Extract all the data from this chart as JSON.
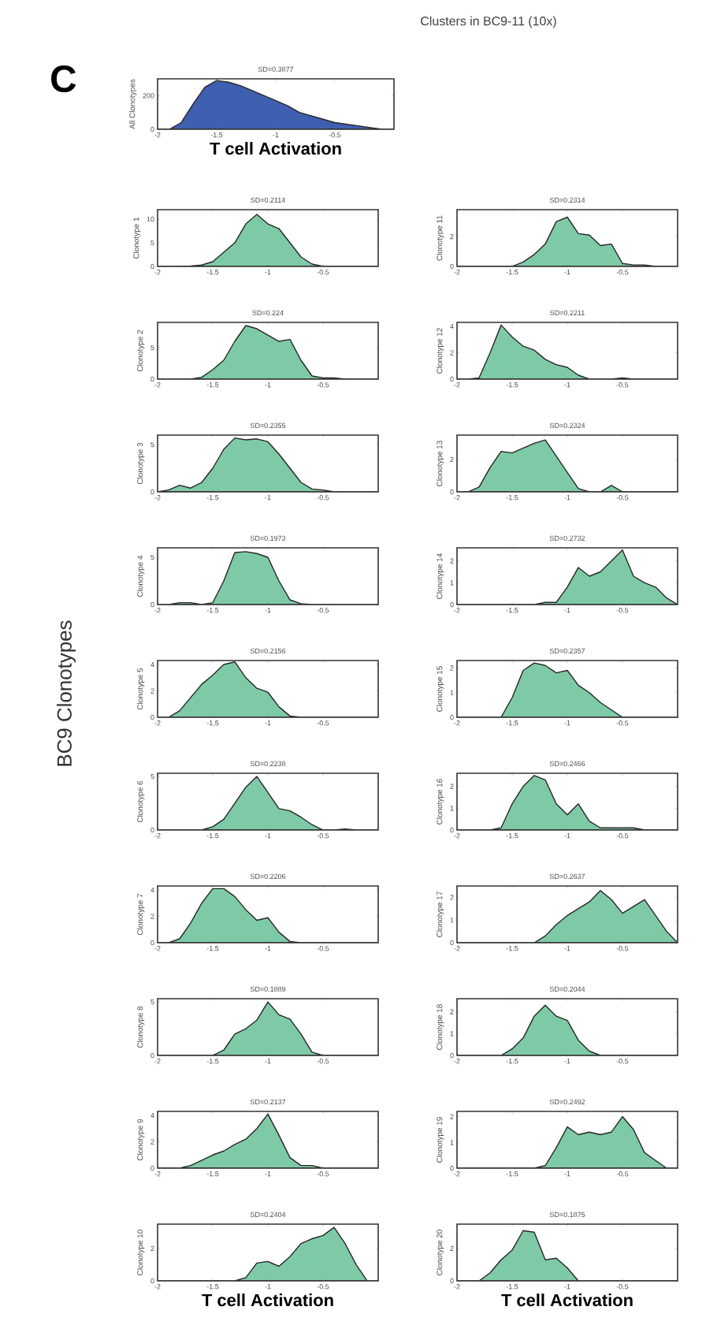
{
  "chart_data": [
    {
      "type": "area",
      "title": "SD=0.3877",
      "ylabel": "All Clonotypes",
      "xlabel": "T cell Activation",
      "color": "#3f5fb0",
      "xlim": [
        -2,
        0
      ],
      "ylim": [
        0,
        300
      ],
      "xticks": [
        -2,
        -1.5,
        -1,
        -0.5
      ],
      "yticks": [
        0,
        200
      ],
      "annotations": [
        "C",
        "Clusters in BC9-11 (10x)",
        "BC9 Clonotypes"
      ],
      "x": [
        -2,
        -1.9,
        -1.8,
        -1.7,
        -1.6,
        -1.5,
        -1.4,
        -1.3,
        -1.2,
        -1.1,
        -1,
        -0.9,
        -0.8,
        -0.7,
        -0.6,
        -0.5,
        -0.4,
        -0.3,
        -0.2,
        -0.1,
        0
      ],
      "values": [
        0,
        0,
        40,
        150,
        250,
        290,
        280,
        260,
        230,
        200,
        170,
        140,
        100,
        80,
        60,
        40,
        30,
        20,
        10,
        0,
        0
      ]
    },
    {
      "type": "area",
      "title": "SD=0.2114",
      "ylabel": "Clonotype 1",
      "color": "#7fcaa6",
      "xlim": [
        -2,
        0
      ],
      "ylim": [
        0,
        12
      ],
      "xticks": [
        -2,
        -1.5,
        -1,
        -0.5
      ],
      "yticks": [
        0,
        5,
        10
      ],
      "x": [
        -2,
        -1.9,
        -1.8,
        -1.7,
        -1.6,
        -1.5,
        -1.4,
        -1.3,
        -1.2,
        -1.1,
        -1,
        -0.9,
        -0.8,
        -0.7,
        -0.6,
        -0.5,
        -0.4,
        -0.3,
        -0.2,
        -0.1,
        0
      ],
      "values": [
        0,
        0,
        0,
        0.1,
        0.3,
        1,
        3,
        5,
        9,
        11,
        9,
        8,
        5,
        2,
        0.5,
        0,
        0,
        0,
        0,
        0,
        0
      ]
    },
    {
      "type": "area",
      "title": "SD=0.224",
      "ylabel": "Clonotype 2",
      "color": "#7fcaa6",
      "xlim": [
        -2,
        0
      ],
      "ylim": [
        0,
        9
      ],
      "xticks": [
        -2,
        -1.5,
        -1,
        -0.5
      ],
      "yticks": [
        0,
        5
      ],
      "x": [
        -2,
        -1.9,
        -1.8,
        -1.7,
        -1.6,
        -1.5,
        -1.4,
        -1.3,
        -1.2,
        -1.1,
        -1,
        -0.9,
        -0.8,
        -0.7,
        -0.6,
        -0.5,
        -0.4,
        -0.3,
        -0.2,
        -0.1,
        0
      ],
      "values": [
        0,
        0,
        0,
        0,
        0.3,
        1.5,
        3,
        6,
        8.5,
        8,
        7,
        6,
        6.3,
        3,
        0.5,
        0.2,
        0.2,
        0,
        0,
        0,
        0
      ]
    },
    {
      "type": "area",
      "title": "SD=0.2355",
      "ylabel": "Clonotype 3",
      "color": "#7fcaa6",
      "xlim": [
        -2,
        0
      ],
      "ylim": [
        0,
        6
      ],
      "xticks": [
        -2,
        -1.5,
        -1,
        -0.5
      ],
      "yticks": [
        0,
        5
      ],
      "x": [
        -2,
        -1.9,
        -1.8,
        -1.7,
        -1.6,
        -1.5,
        -1.4,
        -1.3,
        -1.2,
        -1.1,
        -1,
        -0.9,
        -0.8,
        -0.7,
        -0.6,
        -0.5,
        -0.4,
        -0.3,
        -0.2,
        -0.1,
        0
      ],
      "values": [
        0,
        0.2,
        0.7,
        0.4,
        1,
        2.5,
        4.5,
        5.7,
        5.5,
        5.6,
        5.3,
        4,
        2.5,
        1,
        0.3,
        0.2,
        0,
        0,
        0,
        0,
        0
      ]
    },
    {
      "type": "area",
      "title": "SD=0.1973",
      "ylabel": "Clonotype 4",
      "color": "#7fcaa6",
      "xlim": [
        -2,
        0
      ],
      "ylim": [
        0,
        6
      ],
      "xticks": [
        -2,
        -1.5,
        -1,
        -0.5
      ],
      "yticks": [
        0,
        5
      ],
      "x": [
        -2,
        -1.9,
        -1.8,
        -1.7,
        -1.6,
        -1.5,
        -1.4,
        -1.3,
        -1.2,
        -1.1,
        -1,
        -0.9,
        -0.8,
        -0.7,
        -0.6,
        -0.5,
        -0.4,
        -0.3,
        -0.2,
        -0.1,
        0
      ],
      "values": [
        0,
        0,
        0.2,
        0.2,
        0,
        0.2,
        2.5,
        5.5,
        5.6,
        5.4,
        5,
        2.5,
        0.5,
        0.1,
        0,
        0,
        0,
        0,
        0,
        0,
        0
      ]
    },
    {
      "type": "area",
      "title": "SD=0.2156",
      "ylabel": "Clonotype 5",
      "color": "#7fcaa6",
      "xlim": [
        -2,
        0
      ],
      "ylim": [
        0,
        4.3
      ],
      "xticks": [
        -2,
        -1.5,
        -1,
        -0.5
      ],
      "yticks": [
        0,
        2,
        4
      ],
      "x": [
        -2,
        -1.9,
        -1.8,
        -1.7,
        -1.6,
        -1.5,
        -1.4,
        -1.3,
        -1.2,
        -1.1,
        -1,
        -0.9,
        -0.8,
        -0.7,
        -0.6,
        -0.5,
        -0.4,
        -0.3,
        -0.2,
        -0.1,
        0
      ],
      "values": [
        0,
        0,
        0.5,
        1.5,
        2.5,
        3.2,
        4,
        4.2,
        3,
        2.2,
        1.9,
        0.8,
        0.1,
        0,
        0,
        0,
        0,
        0,
        0,
        0,
        0
      ]
    },
    {
      "type": "area",
      "title": "SD=0.2238",
      "ylabel": "Clonotype 6",
      "color": "#7fcaa6",
      "xlim": [
        -2,
        0
      ],
      "ylim": [
        0,
        5.3
      ],
      "xticks": [
        -2,
        -1.5,
        -1,
        -0.5
      ],
      "yticks": [
        0,
        5
      ],
      "x": [
        -2,
        -1.9,
        -1.8,
        -1.7,
        -1.6,
        -1.5,
        -1.4,
        -1.3,
        -1.2,
        -1.1,
        -1,
        -0.9,
        -0.8,
        -0.7,
        -0.6,
        -0.5,
        -0.4,
        -0.3,
        -0.2,
        -0.1,
        0
      ],
      "values": [
        0,
        0,
        0,
        0,
        0,
        0.3,
        1,
        2.5,
        4,
        5,
        3.5,
        2,
        1.8,
        1.2,
        0.5,
        0,
        0,
        0.1,
        0,
        0,
        0
      ]
    },
    {
      "type": "area",
      "title": "SD=0.2206",
      "ylabel": "Clonotype 7",
      "color": "#7fcaa6",
      "xlim": [
        -2,
        0
      ],
      "ylim": [
        0,
        4.3
      ],
      "xticks": [
        -2,
        -1.5,
        -1,
        -0.5
      ],
      "yticks": [
        0,
        2,
        4
      ],
      "x": [
        -2,
        -1.9,
        -1.8,
        -1.7,
        -1.6,
        -1.5,
        -1.4,
        -1.3,
        -1.2,
        -1.1,
        -1,
        -0.9,
        -0.8,
        -0.7,
        -0.6,
        -0.5,
        -0.4,
        -0.3,
        -0.2,
        -0.1,
        0
      ],
      "values": [
        0,
        0,
        0.3,
        1.5,
        3,
        4.1,
        4.1,
        3.5,
        2.5,
        1.7,
        1.9,
        0.8,
        0.1,
        0,
        0,
        0,
        0,
        0,
        0,
        0,
        0
      ]
    },
    {
      "type": "area",
      "title": "SD=0.1889",
      "ylabel": "Clonotype 8",
      "color": "#7fcaa6",
      "xlim": [
        -2,
        0
      ],
      "ylim": [
        0,
        5.3
      ],
      "xticks": [
        -2,
        -1.5,
        -1,
        -0.5
      ],
      "yticks": [
        0,
        5
      ],
      "x": [
        -2,
        -1.9,
        -1.8,
        -1.7,
        -1.6,
        -1.5,
        -1.4,
        -1.3,
        -1.2,
        -1.1,
        -1,
        -0.9,
        -0.8,
        -0.7,
        -0.6,
        -0.5,
        -0.4,
        -0.3,
        -0.2,
        -0.1,
        0
      ],
      "values": [
        0,
        0,
        0,
        0,
        0,
        0,
        0.5,
        2,
        2.5,
        3.3,
        5,
        3.8,
        3.4,
        2,
        0.3,
        0,
        0,
        0,
        0,
        0,
        0
      ]
    },
    {
      "type": "area",
      "title": "SD=0.2137",
      "ylabel": "Clonotype 9",
      "color": "#7fcaa6",
      "xlim": [
        -2,
        0
      ],
      "ylim": [
        0,
        4.3
      ],
      "xticks": [
        -2,
        -1.5,
        -1,
        -0.5
      ],
      "yticks": [
        0,
        2,
        4
      ],
      "x": [
        -2,
        -1.9,
        -1.8,
        -1.7,
        -1.6,
        -1.5,
        -1.4,
        -1.3,
        -1.2,
        -1.1,
        -1,
        -0.9,
        -0.8,
        -0.7,
        -0.6,
        -0.5,
        -0.4,
        -0.3,
        -0.2,
        -0.1,
        0
      ],
      "values": [
        0,
        0,
        0,
        0.2,
        0.6,
        1,
        1.3,
        1.8,
        2.2,
        3,
        4.1,
        2.5,
        0.8,
        0.2,
        0.2,
        0,
        0,
        0,
        0,
        0,
        0
      ]
    },
    {
      "type": "area",
      "title": "SD=0.2404",
      "ylabel": "Clonotype 10",
      "xlabel": "T cell Activation",
      "color": "#7fcaa6",
      "xlim": [
        -2,
        0
      ],
      "ylim": [
        0,
        3.5
      ],
      "xticks": [
        -2,
        -1.5,
        -1,
        -0.5
      ],
      "yticks": [
        0,
        2
      ],
      "x": [
        -2,
        -1.9,
        -1.8,
        -1.7,
        -1.6,
        -1.5,
        -1.4,
        -1.3,
        -1.2,
        -1.1,
        -1,
        -0.9,
        -0.8,
        -0.7,
        -0.6,
        -0.5,
        -0.4,
        -0.3,
        -0.2,
        -0.1,
        0
      ],
      "values": [
        0,
        0,
        0,
        0,
        0,
        0,
        0,
        0,
        0.2,
        1.1,
        1.2,
        0.9,
        1.5,
        2.3,
        2.6,
        2.8,
        3.3,
        2.3,
        1,
        0,
        0
      ]
    },
    {
      "type": "area",
      "title": "SD=0.2314",
      "ylabel": "Clonotype 11",
      "color": "#7fcaa6",
      "xlim": [
        -2,
        0
      ],
      "ylim": [
        0,
        3.8
      ],
      "xticks": [
        -2,
        -1.5,
        -1,
        -0.5
      ],
      "yticks": [
        0,
        2
      ],
      "x": [
        -2,
        -1.9,
        -1.8,
        -1.7,
        -1.6,
        -1.5,
        -1.4,
        -1.3,
        -1.2,
        -1.1,
        -1,
        -0.9,
        -0.8,
        -0.7,
        -0.6,
        -0.5,
        -0.4,
        -0.3,
        -0.2,
        -0.1,
        0
      ],
      "values": [
        0,
        0,
        0,
        0,
        0,
        0,
        0.3,
        0.8,
        1.5,
        3,
        3.3,
        2.2,
        2.1,
        1.4,
        1.5,
        0.2,
        0.1,
        0.1,
        0,
        0,
        0
      ]
    },
    {
      "type": "area",
      "title": "SD=0.2211",
      "ylabel": "Clonotype 12",
      "color": "#7fcaa6",
      "xlim": [
        -2,
        0
      ],
      "ylim": [
        0,
        4.3
      ],
      "xticks": [
        -2,
        -1.5,
        -1,
        -0.5
      ],
      "yticks": [
        0,
        2,
        4
      ],
      "x": [
        -2,
        -1.9,
        -1.8,
        -1.7,
        -1.6,
        -1.5,
        -1.4,
        -1.3,
        -1.2,
        -1.1,
        -1,
        -0.9,
        -0.8,
        -0.7,
        -0.6,
        -0.5,
        -0.4,
        -0.3,
        -0.2,
        -0.1,
        0
      ],
      "values": [
        0,
        0,
        0.1,
        2,
        4.1,
        3.2,
        2.5,
        2.2,
        1.5,
        1.1,
        0.9,
        0.3,
        0,
        0,
        0,
        0.1,
        0,
        0,
        0,
        0,
        0
      ]
    },
    {
      "type": "area",
      "title": "SD=0.2324",
      "ylabel": "Clonotype 13",
      "color": "#7fcaa6",
      "xlim": [
        -2,
        0
      ],
      "ylim": [
        0,
        3.5
      ],
      "xticks": [
        -2,
        -1.5,
        -1,
        -0.5
      ],
      "yticks": [
        0,
        2
      ],
      "x": [
        -2,
        -1.9,
        -1.8,
        -1.7,
        -1.6,
        -1.5,
        -1.4,
        -1.3,
        -1.2,
        -1.1,
        -1,
        -0.9,
        -0.8,
        -0.7,
        -0.6,
        -0.5,
        -0.4,
        -0.3,
        -0.2,
        -0.1,
        0
      ],
      "values": [
        0,
        0,
        0.3,
        1.5,
        2.5,
        2.4,
        2.7,
        3,
        3.2,
        2.2,
        1.2,
        0.2,
        0,
        0,
        0.4,
        0,
        0,
        0,
        0,
        0,
        0
      ]
    },
    {
      "type": "area",
      "title": "SD=0.2732",
      "ylabel": "Clonotype 14",
      "color": "#7fcaa6",
      "xlim": [
        -2,
        0
      ],
      "ylim": [
        0,
        2.6
      ],
      "xticks": [
        -2,
        -1.5,
        -1,
        -0.5
      ],
      "yticks": [
        0,
        1,
        2
      ],
      "x": [
        -2,
        -1.9,
        -1.8,
        -1.7,
        -1.6,
        -1.5,
        -1.4,
        -1.3,
        -1.2,
        -1.1,
        -1,
        -0.9,
        -0.8,
        -0.7,
        -0.6,
        -0.5,
        -0.4,
        -0.3,
        -0.2,
        -0.1,
        0
      ],
      "values": [
        0,
        0,
        0,
        0,
        0,
        0,
        0,
        0,
        0.1,
        0.1,
        0.8,
        1.7,
        1.3,
        1.5,
        2,
        2.5,
        1.3,
        1,
        0.8,
        0.3,
        0
      ]
    },
    {
      "type": "area",
      "title": "SD=0.2357",
      "ylabel": "Clonotype 15",
      "color": "#7fcaa6",
      "xlim": [
        -2,
        0
      ],
      "ylim": [
        0,
        2.3
      ],
      "xticks": [
        -2,
        -1.5,
        -1,
        -0.5
      ],
      "yticks": [
        0,
        1,
        2
      ],
      "x": [
        -2,
        -1.9,
        -1.8,
        -1.7,
        -1.6,
        -1.5,
        -1.4,
        -1.3,
        -1.2,
        -1.1,
        -1,
        -0.9,
        -0.8,
        -0.7,
        -0.6,
        -0.5,
        -0.4,
        -0.3,
        -0.2,
        -0.1,
        0
      ],
      "values": [
        0,
        0,
        0,
        0,
        0,
        0.8,
        1.9,
        2.2,
        2.1,
        1.8,
        1.9,
        1.3,
        1,
        0.6,
        0.3,
        0,
        0,
        0,
        0,
        0,
        0
      ]
    },
    {
      "type": "area",
      "title": "SD=0.2466",
      "ylabel": "Clonotype 16",
      "color": "#7fcaa6",
      "xlim": [
        -2,
        0
      ],
      "ylim": [
        0,
        2.6
      ],
      "xticks": [
        -2,
        -1.5,
        -1,
        -0.5
      ],
      "yticks": [
        0,
        1,
        2
      ],
      "x": [
        -2,
        -1.9,
        -1.8,
        -1.7,
        -1.6,
        -1.5,
        -1.4,
        -1.3,
        -1.2,
        -1.1,
        -1,
        -0.9,
        -0.8,
        -0.7,
        -0.6,
        -0.5,
        -0.4,
        -0.3,
        -0.2,
        -0.1,
        0
      ],
      "values": [
        0,
        0,
        0,
        0,
        0.1,
        1.2,
        2,
        2.5,
        2.3,
        1.2,
        0.7,
        1.2,
        0.4,
        0.1,
        0.1,
        0.1,
        0.1,
        0,
        0,
        0,
        0
      ]
    },
    {
      "type": "area",
      "title": "SD=0.2637",
      "ylabel": "Clonotype 17",
      "color": "#7fcaa6",
      "xlim": [
        -2,
        0
      ],
      "ylim": [
        0,
        2.5
      ],
      "xticks": [
        -2,
        -1.5,
        -1,
        -0.5
      ],
      "yticks": [
        0,
        1,
        2
      ],
      "x": [
        -2,
        -1.9,
        -1.8,
        -1.7,
        -1.6,
        -1.5,
        -1.4,
        -1.3,
        -1.2,
        -1.1,
        -1,
        -0.9,
        -0.8,
        -0.7,
        -0.6,
        -0.5,
        -0.4,
        -0.3,
        -0.2,
        -0.1,
        0
      ],
      "values": [
        0,
        0,
        0,
        0,
        0,
        0,
        0,
        0,
        0.3,
        0.8,
        1.2,
        1.5,
        1.8,
        2.3,
        1.9,
        1.3,
        1.6,
        1.9,
        1.2,
        0.5,
        0
      ]
    },
    {
      "type": "area",
      "title": "SD=0.2044",
      "ylabel": "Clonotype 18",
      "color": "#7fcaa6",
      "xlim": [
        -2,
        0
      ],
      "ylim": [
        0,
        2.6
      ],
      "xticks": [
        -2,
        -1.5,
        -1,
        -0.5
      ],
      "yticks": [
        0,
        1,
        2
      ],
      "x": [
        -2,
        -1.9,
        -1.8,
        -1.7,
        -1.6,
        -1.5,
        -1.4,
        -1.3,
        -1.2,
        -1.1,
        -1,
        -0.9,
        -0.8,
        -0.7,
        -0.6,
        -0.5,
        -0.4,
        -0.3,
        -0.2,
        -0.1,
        0
      ],
      "values": [
        0,
        0,
        0,
        0,
        0,
        0.3,
        0.8,
        1.8,
        2.3,
        1.8,
        1.6,
        0.7,
        0.2,
        0,
        0,
        0,
        0,
        0,
        0,
        0,
        0
      ]
    },
    {
      "type": "area",
      "title": "SD=0.2492",
      "ylabel": "Clonotype 19",
      "color": "#7fcaa6",
      "xlim": [
        -2,
        0
      ],
      "ylim": [
        0,
        2.2
      ],
      "xticks": [
        -2,
        -1.5,
        -1,
        -0.5
      ],
      "yticks": [
        0,
        1,
        2
      ],
      "x": [
        -2,
        -1.9,
        -1.8,
        -1.7,
        -1.6,
        -1.5,
        -1.4,
        -1.3,
        -1.2,
        -1.1,
        -1,
        -0.9,
        -0.8,
        -0.7,
        -0.6,
        -0.5,
        -0.4,
        -0.3,
        -0.2,
        -0.1,
        0
      ],
      "values": [
        0,
        0,
        0,
        0,
        0,
        0,
        0,
        0,
        0.1,
        0.8,
        1.6,
        1.3,
        1.4,
        1.3,
        1.4,
        2,
        1.5,
        0.6,
        0.3,
        0,
        0
      ]
    },
    {
      "type": "area",
      "title": "SD=0.1875",
      "ylabel": "Clonotype 20",
      "xlabel": "T cell Activation",
      "color": "#7fcaa6",
      "xlim": [
        -2,
        0
      ],
      "ylim": [
        0,
        3.5
      ],
      "xticks": [
        -2,
        -1.5,
        -1,
        -0.5
      ],
      "yticks": [
        0,
        2
      ],
      "x": [
        -2,
        -1.9,
        -1.8,
        -1.7,
        -1.6,
        -1.5,
        -1.4,
        -1.3,
        -1.2,
        -1.1,
        -1,
        -0.9,
        -0.8,
        -0.7,
        -0.6,
        -0.5,
        -0.4,
        -0.3,
        -0.2,
        -0.1,
        0
      ],
      "values": [
        0,
        0,
        0,
        0.5,
        1.3,
        1.9,
        3.1,
        3,
        1.3,
        1.4,
        0.8,
        0,
        0,
        0,
        0,
        0,
        0,
        0,
        0,
        0,
        0
      ]
    }
  ]
}
